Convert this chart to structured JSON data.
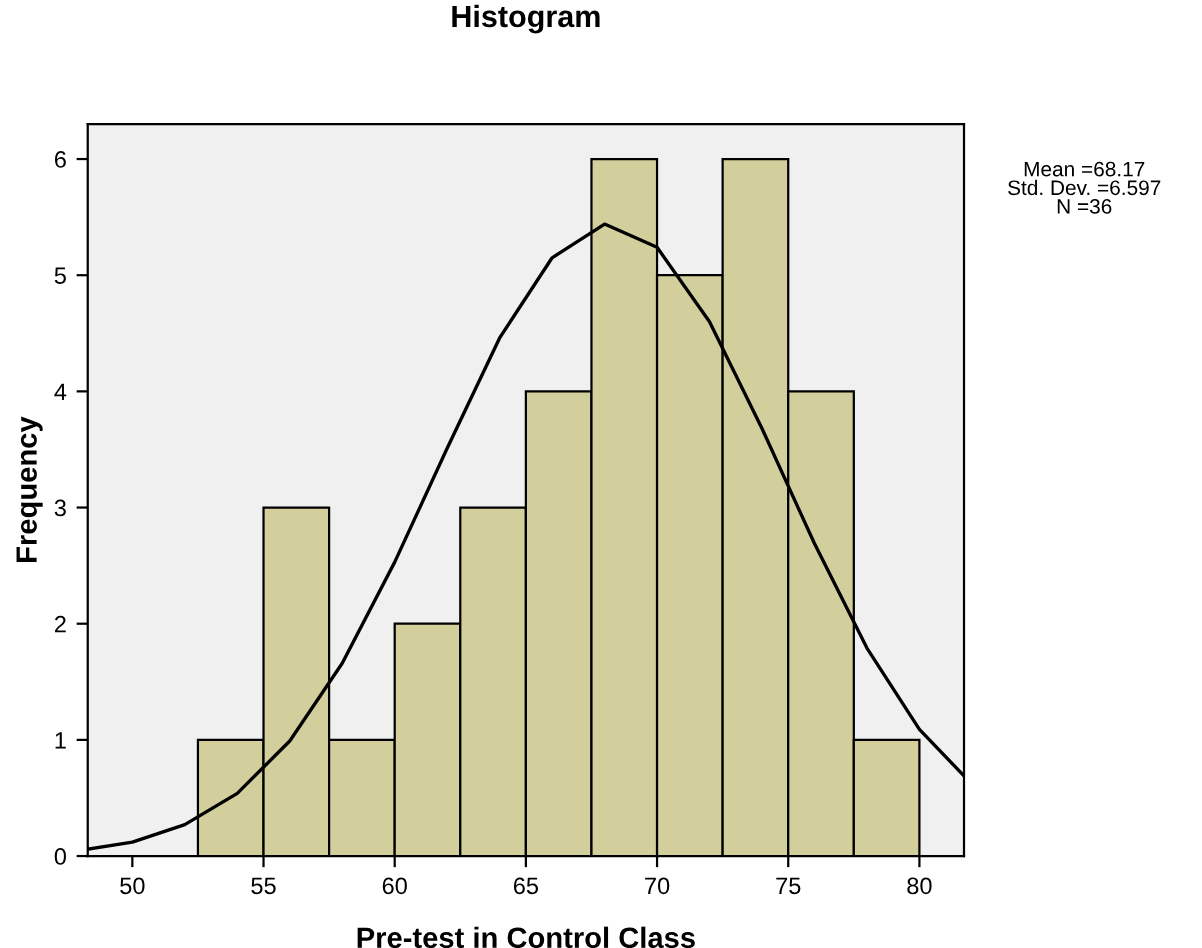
{
  "chart_data": {
    "type": "histogram",
    "title": "Histogram",
    "xlabel": "Pre-test in Control Class",
    "ylabel": "Frequency",
    "bins": [
      52.5,
      55,
      57.5,
      60,
      62.5,
      65,
      67.5,
      70,
      72.5,
      75,
      77.5,
      80
    ],
    "values": [
      1,
      3,
      1,
      2,
      3,
      4,
      6,
      5,
      6,
      4,
      1
    ],
    "color": "#d3cf9d",
    "series": [
      {
        "type": "line",
        "color": "#000000",
        "x": [
          48.3,
          50,
          52,
          54,
          56,
          58,
          60,
          62,
          64,
          66,
          68,
          70,
          72,
          74,
          76,
          78,
          80,
          81.7
        ],
        "values": [
          0.06,
          0.12,
          0.27,
          0.54,
          0.99,
          1.66,
          2.53,
          3.51,
          4.46,
          5.15,
          5.44,
          5.24,
          4.6,
          3.68,
          2.69,
          1.79,
          1.09,
          0.69
        ]
      }
    ],
    "xlim": [
      48.3,
      81.7
    ],
    "xticks": [
      50,
      55,
      60,
      65,
      70,
      75,
      80
    ],
    "ylim": [
      0,
      6.3
    ],
    "yticks": [
      0,
      1,
      2,
      3,
      4,
      5,
      6
    ],
    "annotations": [
      "Mean =68.17\nStd. Dev. =6.597\nN =36"
    ]
  }
}
